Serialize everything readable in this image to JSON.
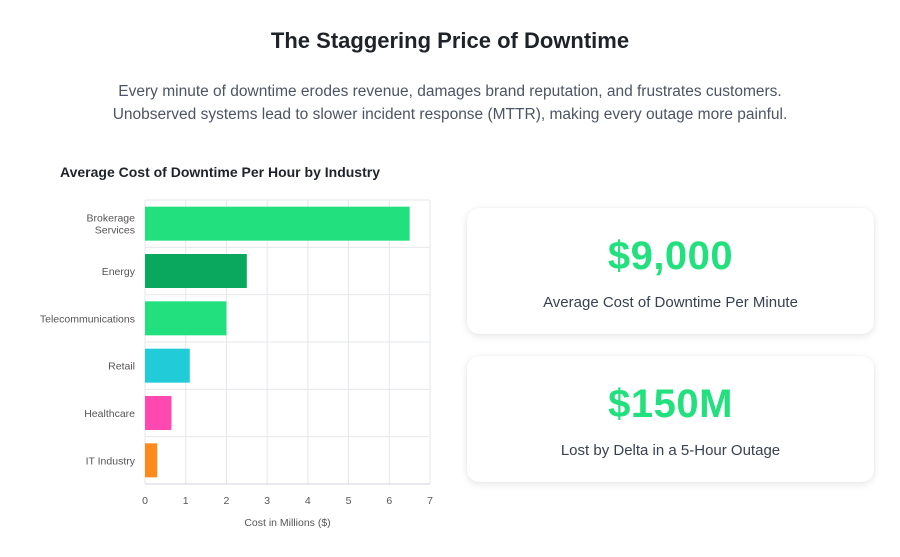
{
  "header": {
    "title": "The Staggering Price of Downtime",
    "subtitle_line1": "Every minute of downtime erodes revenue, damages brand reputation, and frustrates customers.",
    "subtitle_line2": "Unobserved systems lead to slower incident response (MTTR), making every outage more painful."
  },
  "chart_data": {
    "type": "bar",
    "orientation": "horizontal",
    "title": "Average Cost of Downtime Per Hour by Industry",
    "xlabel": "Cost in Millions ($)",
    "ylabel": "",
    "xlim": [
      0,
      7
    ],
    "xticks": [
      "0",
      "1",
      "2",
      "3",
      "4",
      "5",
      "6",
      "7"
    ],
    "categories": [
      [
        "Brokerage",
        "Services"
      ],
      [
        "Energy"
      ],
      [
        "Telecommunications"
      ],
      [
        "Retail"
      ],
      [
        "Healthcare"
      ],
      [
        "IT Industry"
      ]
    ],
    "values": [
      6.5,
      2.5,
      2.0,
      1.1,
      0.65,
      0.3
    ],
    "colors": [
      "#22e07e",
      "#0aa75e",
      "#22e07e",
      "#22cbd8",
      "#ff48b0",
      "#ff8a1c"
    ],
    "grid": true
  },
  "stats": [
    {
      "value": "$9,000",
      "label": "Average Cost of Downtime Per Minute"
    },
    {
      "value": "$150M",
      "label": "Lost by Delta in a 5-Hour Outage"
    }
  ]
}
